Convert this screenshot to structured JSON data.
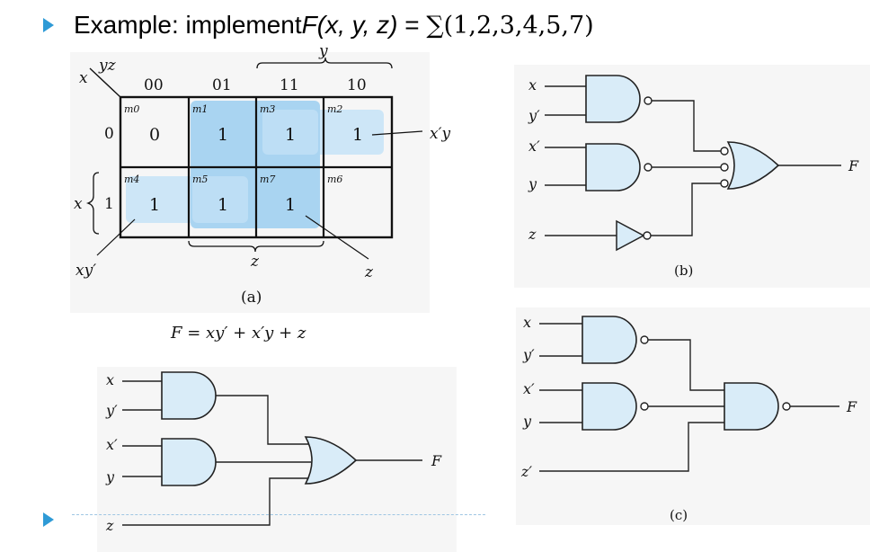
{
  "title": {
    "prefix": "Example: implement ",
    "func": "F(x, y, z)",
    "equals": " = ",
    "sum": "∑(1,2,3,4,5,7)"
  },
  "kmap": {
    "corner_col_var": "yz",
    "corner_row_var": "x",
    "top_brace_label": "y",
    "col_headers": [
      "00",
      "01",
      "11",
      "10"
    ],
    "row_headers": [
      "0",
      "1"
    ],
    "left_brace_label": "x",
    "cells": [
      {
        "minterm": "m0",
        "value": "0"
      },
      {
        "minterm": "m1",
        "value": "1"
      },
      {
        "minterm": "m3",
        "value": "1"
      },
      {
        "minterm": "m2",
        "value": "1"
      },
      {
        "minterm": "m4",
        "value": "1"
      },
      {
        "minterm": "m5",
        "value": "1"
      },
      {
        "minterm": "m7",
        "value": "1"
      },
      {
        "minterm": "m6",
        "value": ""
      }
    ],
    "group_labels": {
      "xpy": "x′y",
      "xyp": "xy′",
      "z_bottom": "z",
      "z_right": "z"
    },
    "caption": "(a)",
    "expression": "F = xy′ + x′y + z",
    "highlight_color": "#cde6f7",
    "highlight_dark": "#a9d4f1"
  },
  "circuit_b": {
    "inputs": [
      "x",
      "y′",
      "x′",
      "y",
      "z"
    ],
    "output": "F",
    "caption": "(b)",
    "gate_fill": "#d9ecf8"
  },
  "circuit_c": {
    "inputs": [
      "x",
      "y′",
      "x′",
      "y",
      "z′"
    ],
    "output": "F",
    "caption": "(c)"
  },
  "circuit_bottom": {
    "inputs": [
      "x",
      "y′",
      "x′",
      "y",
      "z"
    ],
    "output": "F"
  }
}
